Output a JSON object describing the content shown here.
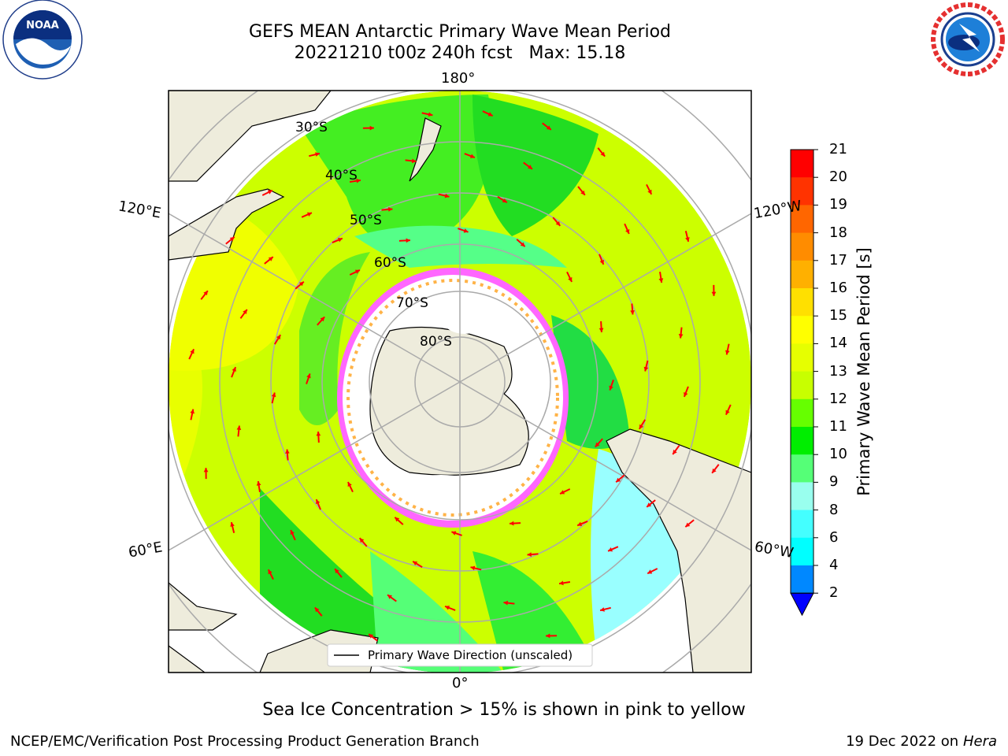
{
  "header": {
    "title": "GEFS MEAN Antarctic Primary Wave Mean Period",
    "subtitle": "20221210 t00z 240h fcst   Max: 15.18"
  },
  "logos": {
    "left": {
      "text": "NOAA",
      "icon": "noaa-logo"
    },
    "right": {
      "text": "NATIONAL WEATHER SERVICE",
      "icon": "nws-logo"
    }
  },
  "map": {
    "projection": "south polar stereographic",
    "longitude_labels": {
      "top": "180°",
      "bottom": "0°",
      "upper_left": "120°E",
      "upper_right": "120°W",
      "lower_left": "60°E",
      "lower_right": "60°W"
    },
    "latitude_labels": [
      "30°S",
      "40°S",
      "50°S",
      "60°S",
      "70°S",
      "80°S"
    ],
    "legend": "Primary Wave Direction (unscaled)",
    "vector_color": "#ff0000",
    "land_color": "#eeecdc",
    "ice_colors": [
      "#ff66ff",
      "#ffffff",
      "#ffb347"
    ]
  },
  "colorbar": {
    "label": "Primary Wave Mean Period [s]",
    "ticks": [
      "21",
      "20",
      "19",
      "18",
      "17",
      "16",
      "15",
      "14",
      "13",
      "12",
      "11",
      "10",
      "9",
      "8",
      "6",
      "4",
      "2"
    ],
    "colors": [
      "#ff0000",
      "#ff3300",
      "#ff6600",
      "#ff8c00",
      "#ffb000",
      "#ffe000",
      "#ffff00",
      "#e6ff00",
      "#c8ff00",
      "#66ff00",
      "#00ee00",
      "#55ff77",
      "#99ffee",
      "#44ffff",
      "#00ffff",
      "#0088ff",
      "#0000ff"
    ]
  },
  "chart_data": {
    "type": "heatmap",
    "title": "GEFS MEAN Antarctic Primary Wave Mean Period",
    "max": 15.18,
    "units": "s",
    "colorbar_range": [
      2,
      21
    ],
    "colorbar_levels": [
      2,
      4,
      6,
      8,
      9,
      10,
      11,
      12,
      13,
      14,
      15,
      16,
      17,
      18,
      19,
      20,
      21
    ]
  },
  "footer": {
    "caption": "Sea Ice Concentration > 15% is shown in pink to yellow",
    "credit": "NCEP/EMC/Verification Post Processing Product Generation Branch",
    "date": "19 Dec 2022 on",
    "host": "Hera"
  }
}
